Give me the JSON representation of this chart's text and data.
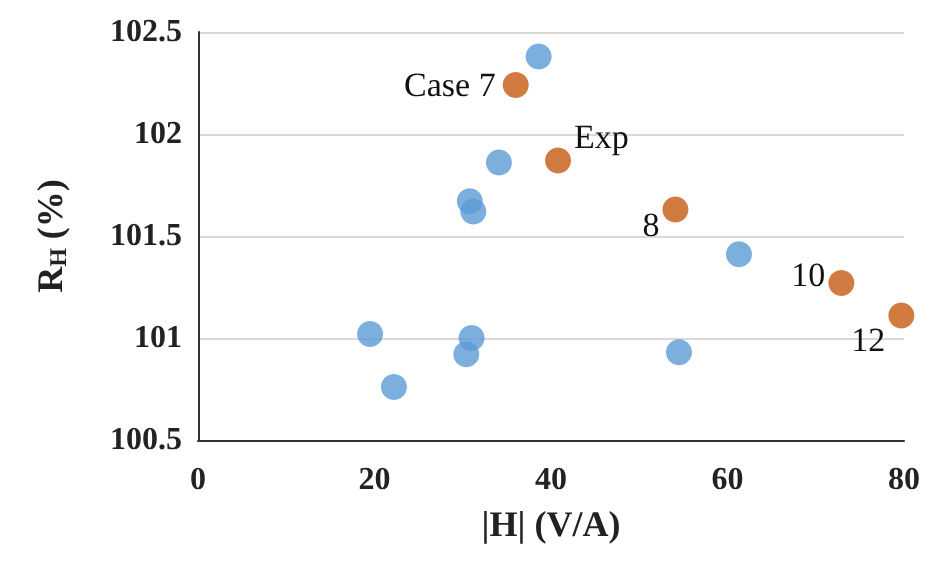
{
  "chart_data": {
    "type": "scatter",
    "xlabel": "|H| (V/A)",
    "ylabel": "R$_{H}$ (%)",
    "xlim": [
      0,
      80
    ],
    "xticks": [
      0,
      20,
      40,
      60,
      80
    ],
    "ylim": [
      100.5,
      102.5
    ],
    "yticks": [
      100.5,
      101,
      101.5,
      102,
      102.5
    ],
    "grid": "y",
    "marker": "circle",
    "series": [
      {
        "color": "#5b9bd5",
        "x": [
          38.6,
          34.1,
          30.8,
          31.2,
          61.3,
          19.5,
          31.0,
          30.4,
          22.2,
          54.5
        ],
        "values": [
          102.38,
          101.86,
          101.67,
          101.62,
          101.41,
          101.02,
          101.0,
          100.92,
          100.76,
          100.93
        ]
      },
      {
        "color": "#c55a11",
        "x": [
          36.0,
          40.8,
          54.1,
          72.9,
          79.7
        ],
        "values": [
          102.24,
          101.87,
          101.63,
          101.27,
          101.11
        ]
      }
    ],
    "annotations": [
      {
        "text": "Case 7",
        "x": 36.0,
        "y": 102.24
      },
      {
        "text": "Exp",
        "x": 40.8,
        "y": 101.87
      },
      {
        "text": "8",
        "x": 54.1,
        "y": 101.63
      },
      {
        "text": "10",
        "x": 72.9,
        "y": 101.27
      },
      {
        "text": "12",
        "x": 79.7,
        "y": 101.11
      }
    ]
  }
}
